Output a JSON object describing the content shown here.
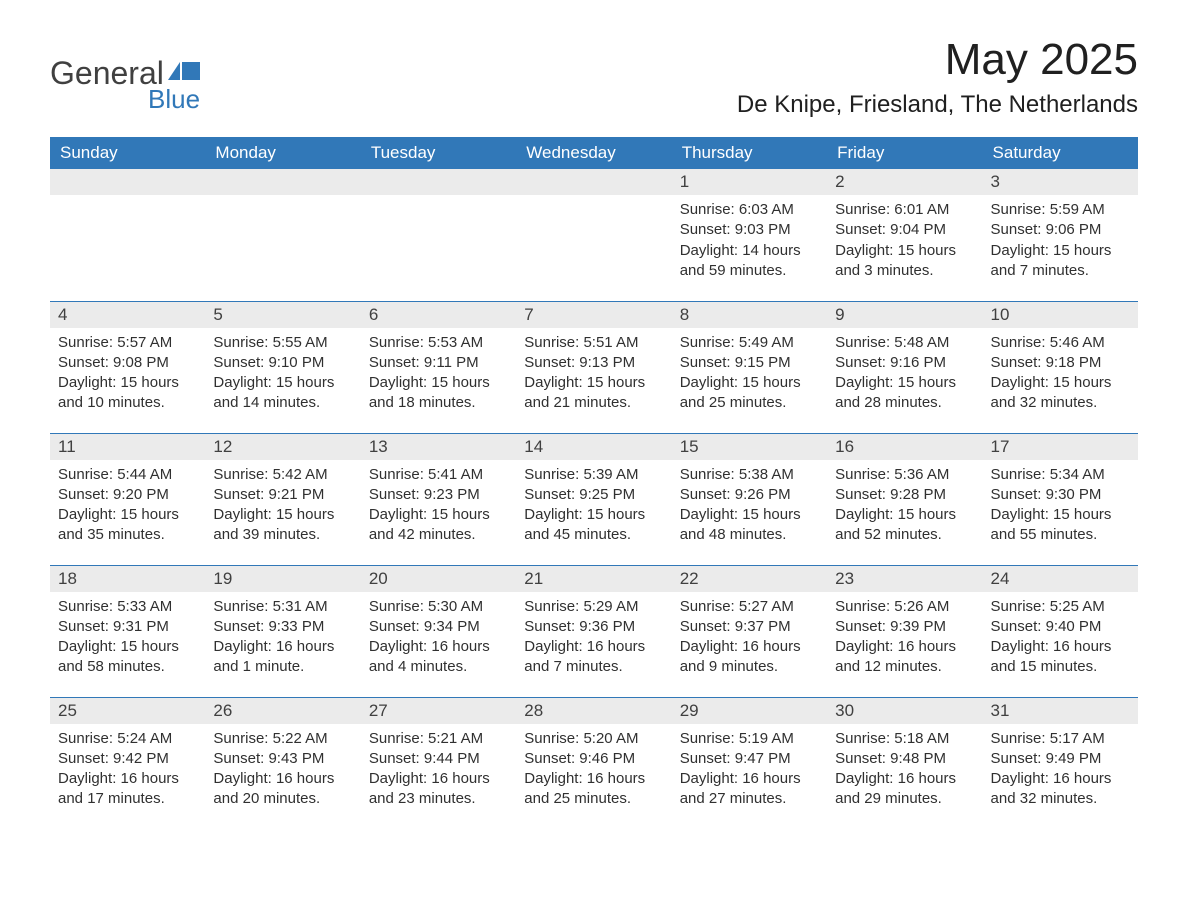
{
  "brand": {
    "general": "General",
    "blue": "Blue",
    "flag_color": "#3178b8"
  },
  "title": "May 2025",
  "location": "De Knipe, Friesland, The Netherlands",
  "colors": {
    "header_bg": "#3178b8",
    "header_text": "#ffffff",
    "day_header_bg": "#ebebeb",
    "text": "#303030",
    "row_separator": "#3178b8",
    "background": "#ffffff"
  },
  "typography": {
    "title_fontsize": 44,
    "location_fontsize": 24,
    "weekday_fontsize": 17,
    "body_fontsize": 15
  },
  "weekdays": [
    "Sunday",
    "Monday",
    "Tuesday",
    "Wednesday",
    "Thursday",
    "Friday",
    "Saturday"
  ],
  "weeks": [
    [
      {
        "n": "",
        "empty": true
      },
      {
        "n": "",
        "empty": true
      },
      {
        "n": "",
        "empty": true
      },
      {
        "n": "",
        "empty": true
      },
      {
        "n": "1",
        "sunrise": "Sunrise: 6:03 AM",
        "sunset": "Sunset: 9:03 PM",
        "daylight": "Daylight: 14 hours and 59 minutes."
      },
      {
        "n": "2",
        "sunrise": "Sunrise: 6:01 AM",
        "sunset": "Sunset: 9:04 PM",
        "daylight": "Daylight: 15 hours and 3 minutes."
      },
      {
        "n": "3",
        "sunrise": "Sunrise: 5:59 AM",
        "sunset": "Sunset: 9:06 PM",
        "daylight": "Daylight: 15 hours and 7 minutes."
      }
    ],
    [
      {
        "n": "4",
        "sunrise": "Sunrise: 5:57 AM",
        "sunset": "Sunset: 9:08 PM",
        "daylight": "Daylight: 15 hours and 10 minutes."
      },
      {
        "n": "5",
        "sunrise": "Sunrise: 5:55 AM",
        "sunset": "Sunset: 9:10 PM",
        "daylight": "Daylight: 15 hours and 14 minutes."
      },
      {
        "n": "6",
        "sunrise": "Sunrise: 5:53 AM",
        "sunset": "Sunset: 9:11 PM",
        "daylight": "Daylight: 15 hours and 18 minutes."
      },
      {
        "n": "7",
        "sunrise": "Sunrise: 5:51 AM",
        "sunset": "Sunset: 9:13 PM",
        "daylight": "Daylight: 15 hours and 21 minutes."
      },
      {
        "n": "8",
        "sunrise": "Sunrise: 5:49 AM",
        "sunset": "Sunset: 9:15 PM",
        "daylight": "Daylight: 15 hours and 25 minutes."
      },
      {
        "n": "9",
        "sunrise": "Sunrise: 5:48 AM",
        "sunset": "Sunset: 9:16 PM",
        "daylight": "Daylight: 15 hours and 28 minutes."
      },
      {
        "n": "10",
        "sunrise": "Sunrise: 5:46 AM",
        "sunset": "Sunset: 9:18 PM",
        "daylight": "Daylight: 15 hours and 32 minutes."
      }
    ],
    [
      {
        "n": "11",
        "sunrise": "Sunrise: 5:44 AM",
        "sunset": "Sunset: 9:20 PM",
        "daylight": "Daylight: 15 hours and 35 minutes."
      },
      {
        "n": "12",
        "sunrise": "Sunrise: 5:42 AM",
        "sunset": "Sunset: 9:21 PM",
        "daylight": "Daylight: 15 hours and 39 minutes."
      },
      {
        "n": "13",
        "sunrise": "Sunrise: 5:41 AM",
        "sunset": "Sunset: 9:23 PM",
        "daylight": "Daylight: 15 hours and 42 minutes."
      },
      {
        "n": "14",
        "sunrise": "Sunrise: 5:39 AM",
        "sunset": "Sunset: 9:25 PM",
        "daylight": "Daylight: 15 hours and 45 minutes."
      },
      {
        "n": "15",
        "sunrise": "Sunrise: 5:38 AM",
        "sunset": "Sunset: 9:26 PM",
        "daylight": "Daylight: 15 hours and 48 minutes."
      },
      {
        "n": "16",
        "sunrise": "Sunrise: 5:36 AM",
        "sunset": "Sunset: 9:28 PM",
        "daylight": "Daylight: 15 hours and 52 minutes."
      },
      {
        "n": "17",
        "sunrise": "Sunrise: 5:34 AM",
        "sunset": "Sunset: 9:30 PM",
        "daylight": "Daylight: 15 hours and 55 minutes."
      }
    ],
    [
      {
        "n": "18",
        "sunrise": "Sunrise: 5:33 AM",
        "sunset": "Sunset: 9:31 PM",
        "daylight": "Daylight: 15 hours and 58 minutes."
      },
      {
        "n": "19",
        "sunrise": "Sunrise: 5:31 AM",
        "sunset": "Sunset: 9:33 PM",
        "daylight": "Daylight: 16 hours and 1 minute."
      },
      {
        "n": "20",
        "sunrise": "Sunrise: 5:30 AM",
        "sunset": "Sunset: 9:34 PM",
        "daylight": "Daylight: 16 hours and 4 minutes."
      },
      {
        "n": "21",
        "sunrise": "Sunrise: 5:29 AM",
        "sunset": "Sunset: 9:36 PM",
        "daylight": "Daylight: 16 hours and 7 minutes."
      },
      {
        "n": "22",
        "sunrise": "Sunrise: 5:27 AM",
        "sunset": "Sunset: 9:37 PM",
        "daylight": "Daylight: 16 hours and 9 minutes."
      },
      {
        "n": "23",
        "sunrise": "Sunrise: 5:26 AM",
        "sunset": "Sunset: 9:39 PM",
        "daylight": "Daylight: 16 hours and 12 minutes."
      },
      {
        "n": "24",
        "sunrise": "Sunrise: 5:25 AM",
        "sunset": "Sunset: 9:40 PM",
        "daylight": "Daylight: 16 hours and 15 minutes."
      }
    ],
    [
      {
        "n": "25",
        "sunrise": "Sunrise: 5:24 AM",
        "sunset": "Sunset: 9:42 PM",
        "daylight": "Daylight: 16 hours and 17 minutes."
      },
      {
        "n": "26",
        "sunrise": "Sunrise: 5:22 AM",
        "sunset": "Sunset: 9:43 PM",
        "daylight": "Daylight: 16 hours and 20 minutes."
      },
      {
        "n": "27",
        "sunrise": "Sunrise: 5:21 AM",
        "sunset": "Sunset: 9:44 PM",
        "daylight": "Daylight: 16 hours and 23 minutes."
      },
      {
        "n": "28",
        "sunrise": "Sunrise: 5:20 AM",
        "sunset": "Sunset: 9:46 PM",
        "daylight": "Daylight: 16 hours and 25 minutes."
      },
      {
        "n": "29",
        "sunrise": "Sunrise: 5:19 AM",
        "sunset": "Sunset: 9:47 PM",
        "daylight": "Daylight: 16 hours and 27 minutes."
      },
      {
        "n": "30",
        "sunrise": "Sunrise: 5:18 AM",
        "sunset": "Sunset: 9:48 PM",
        "daylight": "Daylight: 16 hours and 29 minutes."
      },
      {
        "n": "31",
        "sunrise": "Sunrise: 5:17 AM",
        "sunset": "Sunset: 9:49 PM",
        "daylight": "Daylight: 16 hours and 32 minutes."
      }
    ]
  ]
}
